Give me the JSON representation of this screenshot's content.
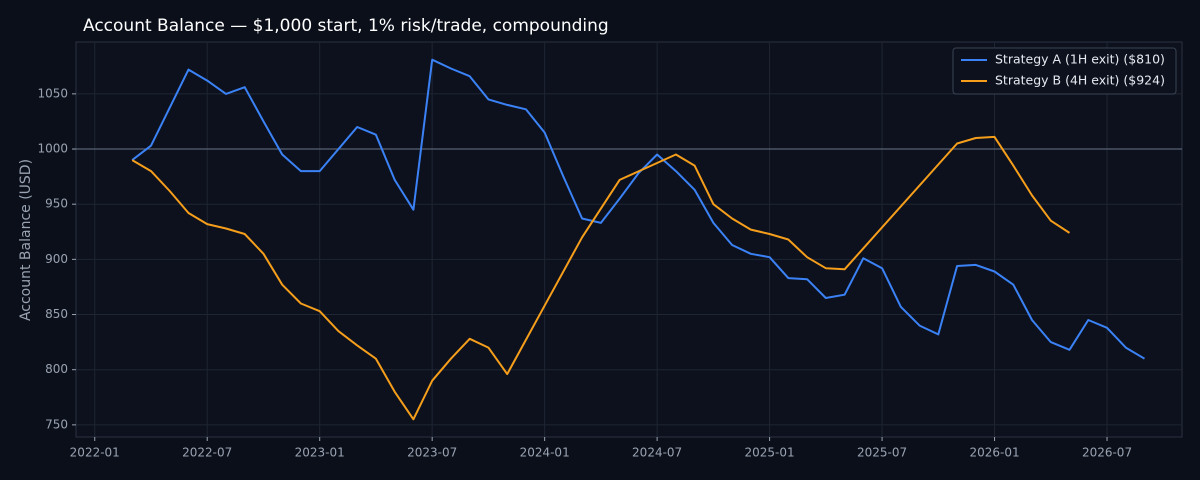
{
  "chart_data": {
    "type": "line",
    "title": "Account Balance — $1,000 start, 1% risk/trade, compounding",
    "y_label": "Account Balance (USD)",
    "xlim": [
      "2021-12",
      "2026-11"
    ],
    "xticks": [
      "2022-01",
      "2022-07",
      "2023-01",
      "2023-07",
      "2024-01",
      "2024-07",
      "2025-01",
      "2025-07",
      "2026-01",
      "2026-07"
    ],
    "ylim": [
      739,
      1097
    ],
    "yticks": [
      750,
      800,
      850,
      900,
      950,
      1000,
      1050
    ],
    "reference_line": 1000,
    "grid": true,
    "legend": "upper right",
    "series": [
      {
        "name": "Strategy A (1H exit) ($810)",
        "color": "#3b82f6",
        "x": [
          "2022-03",
          "2022-04",
          "2022-06",
          "2022-07",
          "2022-08",
          "2022-09",
          "2022-10",
          "2022-11",
          "2022-12",
          "2023-01",
          "2023-03",
          "2023-04",
          "2023-05",
          "2023-06",
          "2023-07",
          "2023-08",
          "2023-09",
          "2023-10",
          "2023-11",
          "2023-12",
          "2024-01",
          "2024-02",
          "2024-03",
          "2024-04",
          "2024-05",
          "2024-06",
          "2024-07",
          "2024-08",
          "2024-09",
          "2024-10",
          "2024-11",
          "2024-12",
          "2025-01",
          "2025-02",
          "2025-03",
          "2025-04",
          "2025-05",
          "2025-06",
          "2025-07",
          "2025-08",
          "2025-09",
          "2025-10",
          "2025-11",
          "2025-12",
          "2026-01",
          "2026-02",
          "2026-03",
          "2026-04",
          "2026-05",
          "2026-06",
          "2026-07",
          "2026-08",
          "2026-09"
        ],
        "values": [
          990,
          1003,
          1072,
          1062,
          1050,
          1056,
          1025,
          995,
          980,
          980,
          1020,
          1013,
          972,
          945,
          1081,
          1073,
          1066,
          1045,
          1040,
          1036,
          1015,
          975,
          937,
          933,
          955,
          978,
          995,
          980,
          963,
          933,
          913,
          905,
          902,
          883,
          882,
          865,
          868,
          901,
          892,
          857,
          840,
          832,
          894,
          895,
          889,
          877,
          845,
          825,
          818,
          845,
          838,
          820,
          810
        ]
      },
      {
        "name": "Strategy B (4H exit) ($924)",
        "color": "#f59e1b",
        "x": [
          "2022-03",
          "2022-04",
          "2022-05",
          "2022-06",
          "2022-07",
          "2022-08",
          "2022-09",
          "2022-10",
          "2022-11",
          "2022-12",
          "2023-01",
          "2023-02",
          "2023-03",
          "2023-04",
          "2023-05",
          "2023-06",
          "2023-07",
          "2023-08",
          "2023-09",
          "2023-10",
          "2023-11",
          "2024-01",
          "2024-03",
          "2024-05",
          "2024-08",
          "2024-09",
          "2024-10",
          "2024-11",
          "2024-12",
          "2025-01",
          "2025-02",
          "2025-03",
          "2025-04",
          "2025-05",
          "2025-11",
          "2025-12",
          "2026-01",
          "2026-02",
          "2026-03",
          "2026-04",
          "2026-05"
        ],
        "values": [
          990,
          980,
          962,
          942,
          932,
          928,
          923,
          905,
          877,
          860,
          853,
          835,
          822,
          810,
          780,
          755,
          790,
          810,
          828,
          820,
          796,
          858,
          920,
          972,
          995,
          985,
          950,
          937,
          927,
          923,
          918,
          902,
          892,
          891,
          1005,
          1010,
          1011,
          985,
          958,
          935,
          924
        ]
      }
    ]
  }
}
